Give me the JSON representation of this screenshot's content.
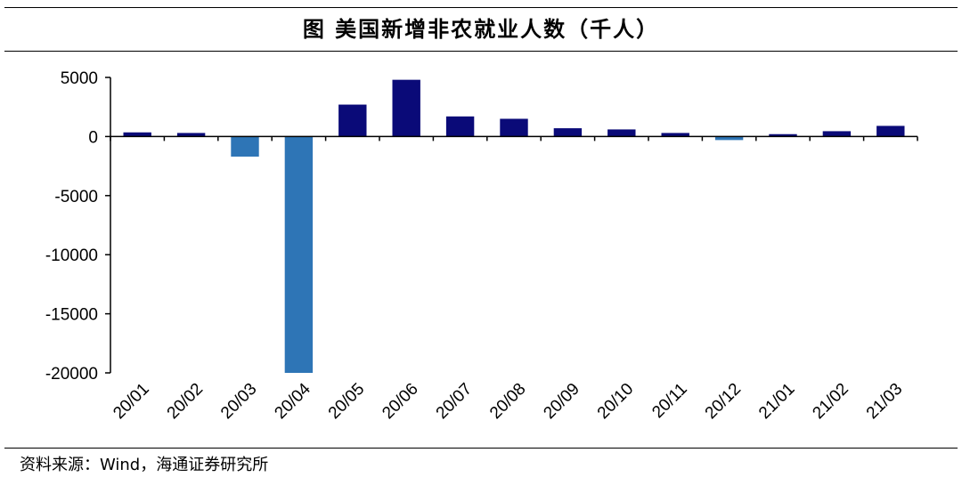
{
  "figure": {
    "title": "图  美国新增非农就业人数（千人）",
    "source": "资料来源：Wind，海通证券研究所"
  },
  "colors": {
    "positive": "#0a0a78",
    "negative": "#2e75b6",
    "axis": "#000000"
  },
  "chart_data": {
    "type": "bar",
    "title": "美国新增非农就业人数（千人）",
    "xlabel": "",
    "ylabel": "",
    "ylim": [
      -20000,
      5000
    ],
    "yticks": [
      5000,
      0,
      -5000,
      -10000,
      -15000,
      -20000
    ],
    "ytick_labels": [
      "5000",
      "0",
      "-5000",
      "-10000",
      "-15000",
      "-20000"
    ],
    "grid": false,
    "categories": [
      "20/01",
      "20/02",
      "20/03",
      "20/04",
      "20/05",
      "20/06",
      "20/07",
      "20/08",
      "20/09",
      "20/10",
      "20/11",
      "20/12",
      "21/01",
      "21/02",
      "21/03"
    ],
    "values": [
      350,
      300,
      -1700,
      -20000,
      2700,
      4800,
      1700,
      1500,
      700,
      600,
      300,
      -300,
      200,
      450,
      900
    ]
  }
}
